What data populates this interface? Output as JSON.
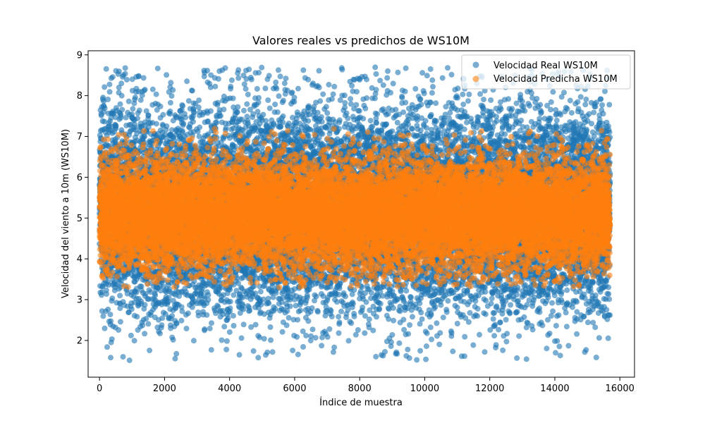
{
  "chart_data": {
    "type": "scatter",
    "title": "Valores reales vs predichos de WS10M",
    "xlabel": "Índice de muestra",
    "ylabel": "Velocidad del viento a 10m (WS10M)",
    "xlim": [
      -350,
      16450
    ],
    "ylim": [
      1.1,
      9.1
    ],
    "xticks": [
      0,
      2000,
      4000,
      6000,
      8000,
      10000,
      12000,
      14000,
      16000
    ],
    "yticks": [
      2,
      3,
      4,
      5,
      6,
      7,
      8,
      9
    ],
    "grid": false,
    "legend_position": "upper-right",
    "n_samples": 15700,
    "series": [
      {
        "name": "Velocidad Real WS10M",
        "color": "#1f77b4",
        "alpha": 0.6,
        "mean": 5.2,
        "std": 1.25,
        "min": 1.5,
        "max": 8.7
      },
      {
        "name": "Velocidad Predicha WS10M",
        "color": "#ff7f0e",
        "alpha": 0.6,
        "mean": 5.1,
        "std": 0.65,
        "min": 3.3,
        "max": 7.2
      }
    ]
  }
}
